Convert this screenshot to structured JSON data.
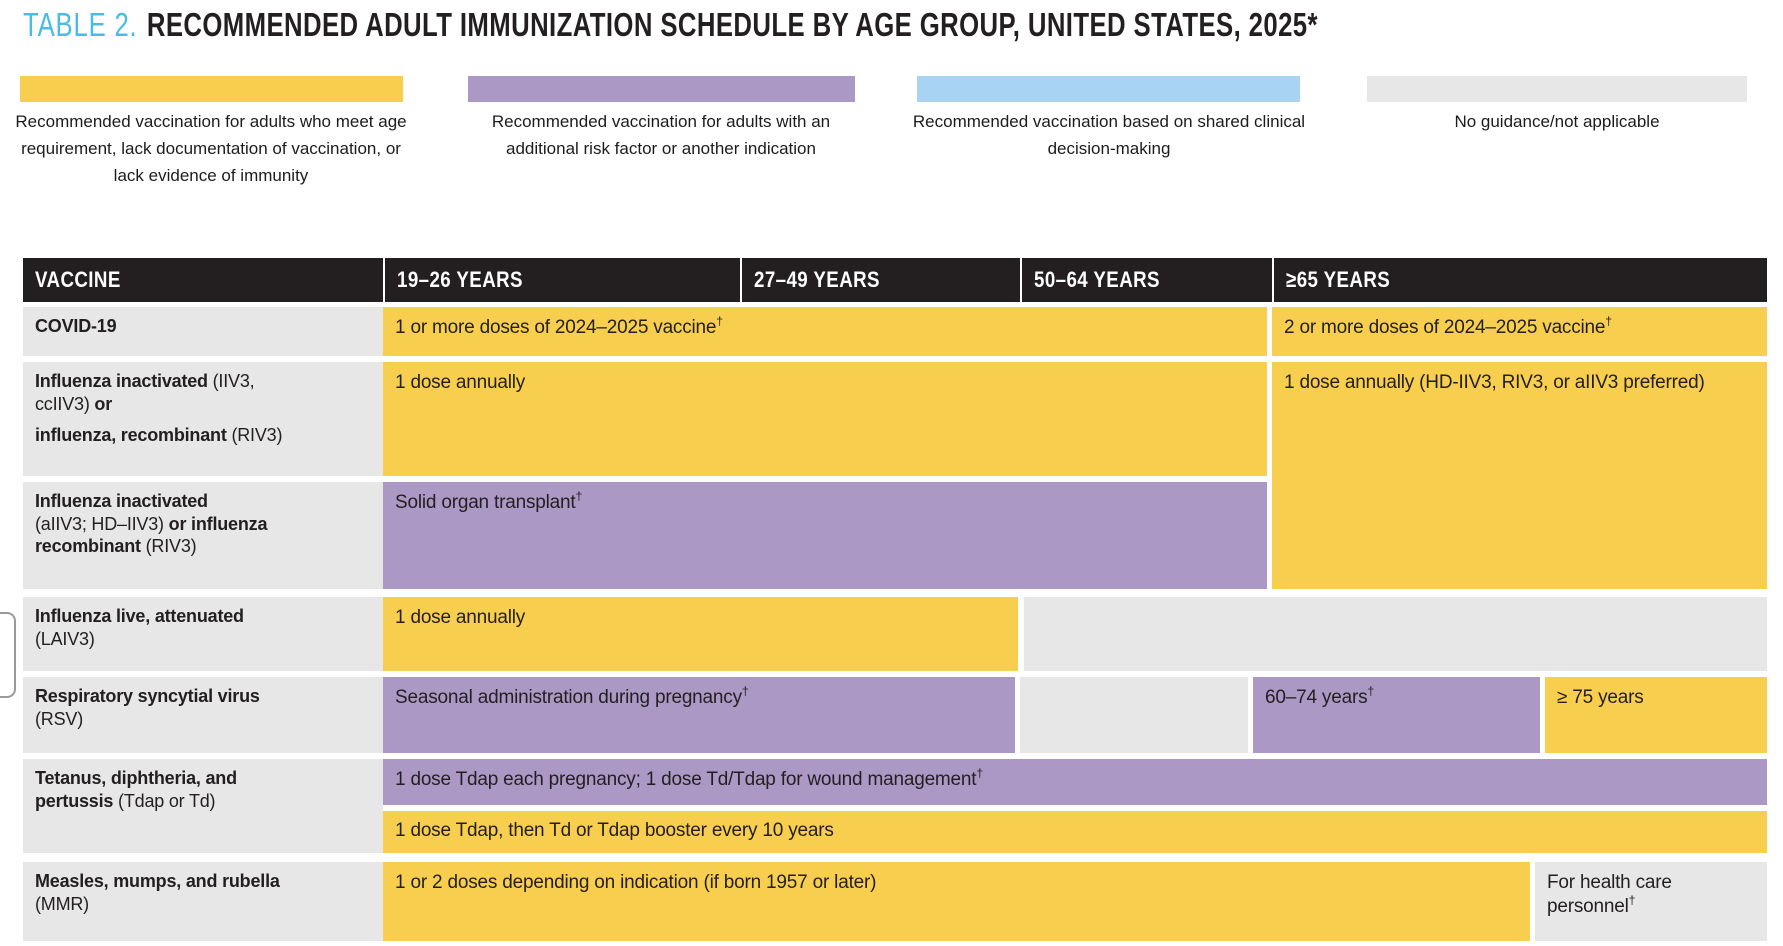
{
  "title": {
    "prefix": "TABLE 2.",
    "text": "RECOMMENDED ADULT IMMUNIZATION SCHEDULE BY AGE GROUP, UNITED STATES, 2025*"
  },
  "colors": {
    "yellow": "#F7CE4D",
    "purple": "#AC98C5",
    "blue": "#A9D3F2",
    "gray": "#E7E7E7",
    "header_bg": "#231F20",
    "title_accent": "#49BCE5",
    "text": "#231F20"
  },
  "legend": [
    {
      "category": "recommended-age",
      "label": [
        {
          "t": "Recommended vaccination for adults who meet age"
        },
        {
          "br": true
        },
        {
          "t": "requirement, lack documentation of vaccination, or"
        },
        {
          "br": true
        },
        {
          "t": "lack evidence of immunity"
        }
      ]
    },
    {
      "category": "risk-factor",
      "label": [
        {
          "t": "Recommended vaccination for adults with an"
        },
        {
          "br": true
        },
        {
          "t": "additional risk factor or another indication"
        }
      ]
    },
    {
      "category": "shared-decision",
      "label": [
        {
          "t": "Recommended vaccination based on shared clinical"
        },
        {
          "br": true
        },
        {
          "t": "decision-making"
        }
      ]
    },
    {
      "category": "no-guidance",
      "label": [
        {
          "t": "No guidance/not applicable"
        }
      ]
    }
  ],
  "table": {
    "headers": [
      "VACCINE",
      "19–26 YEARS",
      "27–49 YEARS",
      "50–64 YEARS",
      "≥65 YEARS"
    ],
    "rows": [
      {
        "vaccine": [
          {
            "t": "COVID-19",
            "b": true
          }
        ],
        "cells": [
          {
            "category": "recommended-age",
            "text": [
              {
                "t": "1 or more doses of 2024–2025 vaccine"
              },
              {
                "t": "†",
                "sup": true
              }
            ]
          },
          {
            "category": "recommended-age",
            "text": [
              {
                "t": "2 or more doses of 2024–2025 vaccine"
              },
              {
                "t": "†",
                "sup": true
              }
            ]
          }
        ]
      },
      {
        "vaccine": [
          {
            "t": "Influenza inactivated ",
            "b": true
          },
          {
            "t": "(IIV3,"
          },
          {
            "br": true
          },
          {
            "t": "ccIIV3) "
          },
          {
            "t": "or",
            "b": true
          },
          {
            "gap": true
          },
          {
            "t": "influenza, recombinant ",
            "b": true
          },
          {
            "t": "(RIV3)"
          }
        ],
        "cells": [
          {
            "category": "recommended-age",
            "text": [
              {
                "t": "1 dose annually"
              }
            ]
          },
          {
            "category": "recommended-age",
            "text": [
              {
                "t": "1 dose annually (HD-IIV3, RIV3, or aIIV3 preferred)"
              }
            ]
          }
        ]
      },
      {
        "vaccine": [
          {
            "t": "Influenza inactivated",
            "b": true
          },
          {
            "br": true
          },
          {
            "t": "(aIIV3; HD–IIV3) "
          },
          {
            "t": "or influenza",
            "b": true
          },
          {
            "br": true
          },
          {
            "t": "recombinant ",
            "b": true
          },
          {
            "t": "(RIV3)"
          }
        ],
        "cells": [
          {
            "category": "risk-factor",
            "text": [
              {
                "t": "Solid organ transplant"
              },
              {
                "t": "†",
                "sup": true
              }
            ]
          }
        ]
      },
      {
        "vaccine": [
          {
            "t": "Influenza live, attenuated",
            "b": true
          },
          {
            "br": true
          },
          {
            "t": "(LAIV3)"
          }
        ],
        "cells": [
          {
            "category": "recommended-age",
            "text": [
              {
                "t": "1 dose annually"
              }
            ]
          },
          {
            "category": "no-guidance",
            "text": []
          }
        ]
      },
      {
        "vaccine": [
          {
            "t": "Respiratory syncytial virus",
            "b": true
          },
          {
            "br": true
          },
          {
            "t": "(RSV)"
          }
        ],
        "cells": [
          {
            "category": "risk-factor",
            "text": [
              {
                "t": "Seasonal administration during pregnancy"
              },
              {
                "t": "†",
                "sup": true
              }
            ]
          },
          {
            "category": "no-guidance",
            "text": []
          },
          {
            "category": "risk-factor",
            "text": [
              {
                "t": "60–74 years"
              },
              {
                "t": "†",
                "sup": true
              }
            ]
          },
          {
            "category": "recommended-age",
            "text": [
              {
                "t": "≥ 75 years"
              }
            ]
          }
        ]
      },
      {
        "vaccine": [
          {
            "t": "Tetanus, diphtheria, and",
            "b": true
          },
          {
            "br": true
          },
          {
            "t": "pertussis ",
            "b": true
          },
          {
            "t": "(Tdap or Td)"
          }
        ],
        "cells": [
          {
            "category": "risk-factor",
            "text": [
              {
                "t": "1 dose Tdap each pregnancy; 1 dose Td/Tdap for wound management"
              },
              {
                "t": "†",
                "sup": true
              }
            ]
          },
          {
            "category": "recommended-age",
            "text": [
              {
                "t": "1 dose Tdap, then Td or Tdap booster every 10 years"
              }
            ]
          }
        ]
      },
      {
        "vaccine": [
          {
            "t": "Measles, mumps, and rubella",
            "b": true
          },
          {
            "br": true
          },
          {
            "t": "(MMR)"
          }
        ],
        "cells": [
          {
            "category": "recommended-age",
            "text": [
              {
                "t": "1 or 2 doses depending on indication (if born 1957 or later)"
              }
            ]
          },
          {
            "category": "no-guidance",
            "text": [
              {
                "t": "For health care personnel"
              },
              {
                "t": "†",
                "sup": true
              }
            ]
          }
        ]
      }
    ]
  }
}
